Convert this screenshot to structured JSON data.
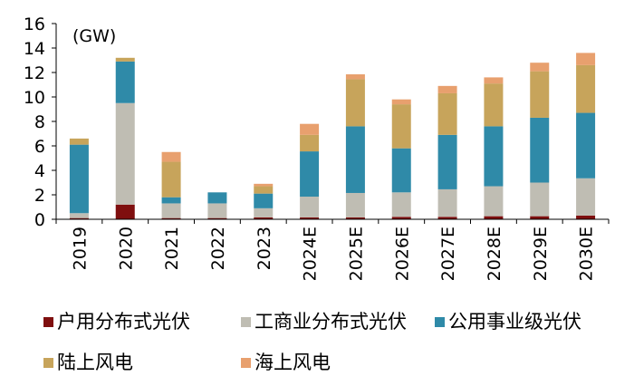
{
  "chart_data": {
    "type": "bar",
    "stacked": true,
    "unit_label": "(GW)",
    "title": "",
    "xlabel": "",
    "ylabel": "",
    "ylim": [
      0,
      16
    ],
    "yticks": [
      0,
      2,
      4,
      6,
      8,
      10,
      12,
      14,
      16
    ],
    "grid": false,
    "legend_position": "bottom",
    "categories": [
      "2019",
      "2020",
      "2021",
      "2022",
      "2023",
      "2024E",
      "2025E",
      "2026E",
      "2027E",
      "2028E",
      "2029E",
      "2030E"
    ],
    "series": [
      {
        "name": "户用分布式光伏",
        "color": "#7f0f0f",
        "values": [
          0.1,
          1.2,
          0.1,
          0.1,
          0.15,
          0.15,
          0.15,
          0.2,
          0.2,
          0.25,
          0.25,
          0.3
        ]
      },
      {
        "name": "工商业分布式光伏",
        "color": "#bfbdb3",
        "values": [
          0.4,
          8.3,
          1.2,
          1.2,
          0.75,
          1.7,
          2.0,
          2.0,
          2.25,
          2.45,
          2.75,
          3.05
        ]
      },
      {
        "name": "公用事业级光伏",
        "color": "#2f8aa8",
        "values": [
          5.6,
          3.4,
          0.5,
          0.9,
          1.2,
          3.7,
          5.45,
          3.6,
          4.45,
          4.9,
          5.3,
          5.35
        ]
      },
      {
        "name": "陆上风电",
        "color": "#c7a45b",
        "values": [
          0.5,
          0.3,
          2.9,
          0.0,
          0.6,
          1.35,
          3.85,
          3.6,
          3.4,
          3.5,
          3.8,
          3.9
        ]
      },
      {
        "name": "海上风电",
        "color": "#e8a06e",
        "values": [
          0.0,
          0.0,
          0.8,
          0.0,
          0.2,
          0.9,
          0.4,
          0.4,
          0.6,
          0.5,
          0.7,
          1.0
        ]
      }
    ]
  }
}
